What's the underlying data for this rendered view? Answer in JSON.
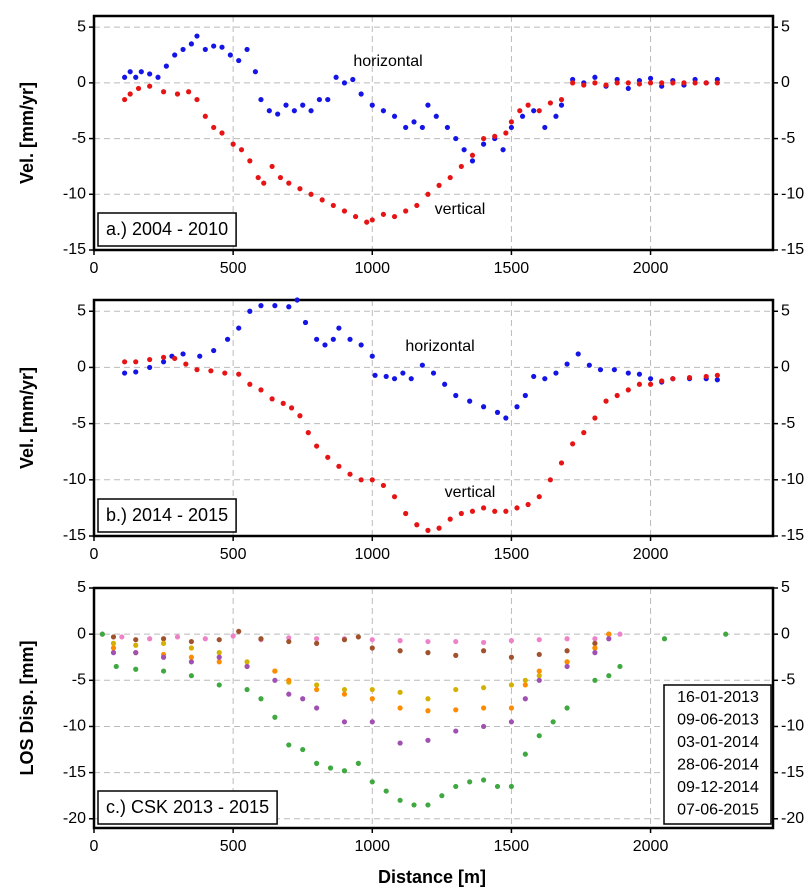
{
  "chart_data": [
    {
      "type": "scatter",
      "panel_label": "a.) 2004 - 2010",
      "ylabel": "Vel. [mm/yr]",
      "xlim": [
        0,
        2440
      ],
      "xticks": [
        0,
        500,
        1000,
        1500,
        2000
      ],
      "ylim": [
        -15,
        6
      ],
      "yticks": [
        -15,
        -10,
        -5,
        0,
        5
      ],
      "grid": true,
      "series": [
        {
          "name": "horizontal",
          "color": "#1414e6",
          "x": [
            110,
            130,
            150,
            170,
            200,
            230,
            260,
            290,
            320,
            350,
            370,
            400,
            430,
            460,
            490,
            520,
            550,
            580,
            600,
            630,
            660,
            690,
            720,
            750,
            780,
            810,
            840,
            870,
            900,
            930,
            960,
            1000,
            1040,
            1080,
            1120,
            1150,
            1180,
            1200,
            1230,
            1270,
            1300,
            1330,
            1360,
            1400,
            1440,
            1470,
            1500,
            1540,
            1580,
            1620,
            1660,
            1680,
            1720,
            1760,
            1800,
            1840,
            1880,
            1920,
            1960,
            2000,
            2040,
            2080,
            2120,
            2160,
            2200,
            2240
          ],
          "values": [
            0.5,
            1,
            0.5,
            1,
            0.8,
            0.5,
            1.5,
            2.5,
            3,
            3.5,
            4.2,
            3,
            3.3,
            3.2,
            2.5,
            2,
            3,
            1,
            -1.5,
            -2.5,
            -2.8,
            -2,
            -2.5,
            -2,
            -2.5,
            -1.5,
            -1.5,
            0.5,
            0,
            0.3,
            -1,
            -2,
            -2.5,
            -3,
            -4,
            -3.5,
            -4,
            -2,
            -3,
            -4,
            -5,
            -6,
            -7,
            -5.5,
            -5,
            -6,
            -4,
            -3,
            -2.5,
            -4,
            -3,
            -2,
            0.3,
            0,
            0.5,
            -0.3,
            0.3,
            -0.5,
            0.2,
            0.4,
            -0.3,
            0.2,
            -0.2,
            0.3,
            0,
            0.3
          ]
        },
        {
          "name": "vertical",
          "color": "#e61414",
          "x": [
            110,
            130,
            160,
            200,
            250,
            300,
            340,
            370,
            400,
            430,
            460,
            500,
            530,
            560,
            590,
            610,
            640,
            670,
            700,
            740,
            780,
            820,
            860,
            900,
            940,
            980,
            1000,
            1040,
            1080,
            1120,
            1160,
            1200,
            1240,
            1280,
            1320,
            1360,
            1400,
            1440,
            1480,
            1500,
            1530,
            1560,
            1600,
            1640,
            1680,
            1720,
            1760,
            1800,
            1840,
            1880,
            1920,
            1960,
            2000,
            2040,
            2080,
            2120,
            2160,
            2200,
            2240
          ],
          "values": [
            -1.5,
            -1,
            -0.5,
            -0.3,
            -0.8,
            -1,
            -0.8,
            -1.5,
            -3,
            -4,
            -4.5,
            -5.5,
            -6,
            -7,
            -8.5,
            -9,
            -7.5,
            -8.5,
            -9,
            -9.5,
            -10,
            -10.5,
            -11,
            -11.5,
            -12,
            -12.5,
            -12.3,
            -11.8,
            -12,
            -11.5,
            -11,
            -10,
            -9.2,
            -8.5,
            -7.5,
            -6.5,
            -5,
            -4.8,
            -4.5,
            -3.5,
            -2.5,
            -2,
            -2.5,
            -1.8,
            -1.5,
            0,
            -0.2,
            0,
            -0.2,
            0,
            0,
            -0.1,
            0,
            0,
            0,
            0,
            0,
            0,
            0
          ]
        }
      ]
    },
    {
      "type": "scatter",
      "panel_label": "b.) 2014 - 2015",
      "ylabel": "Vel. [mm/yr]",
      "xlim": [
        0,
        2440
      ],
      "xticks": [
        0,
        500,
        1000,
        1500,
        2000
      ],
      "ylim": [
        -15,
        6
      ],
      "yticks": [
        -15,
        -10,
        -5,
        0,
        5
      ],
      "grid": true,
      "series": [
        {
          "name": "horizontal",
          "color": "#1414e6",
          "x": [
            110,
            150,
            200,
            250,
            280,
            320,
            380,
            430,
            480,
            520,
            560,
            600,
            650,
            700,
            730,
            760,
            800,
            830,
            860,
            880,
            920,
            960,
            1000,
            1010,
            1050,
            1080,
            1110,
            1140,
            1180,
            1220,
            1260,
            1300,
            1350,
            1400,
            1450,
            1480,
            1520,
            1550,
            1580,
            1620,
            1660,
            1700,
            1740,
            1780,
            1820,
            1870,
            1920,
            1960,
            2000,
            2040,
            2080,
            2140,
            2200,
            2240
          ],
          "values": [
            -0.5,
            -0.4,
            0,
            0.5,
            1,
            1.2,
            1,
            1.5,
            2.5,
            3.5,
            5,
            5.5,
            5.5,
            5.4,
            6,
            4,
            2.5,
            2,
            2.5,
            3.5,
            2.5,
            2,
            1,
            -0.7,
            -0.8,
            -1,
            -0.5,
            -1,
            0.2,
            -0.5,
            -1.5,
            -2.5,
            -3,
            -3.5,
            -4,
            -4.5,
            -3.5,
            -2.5,
            -0.8,
            -1,
            -0.5,
            0.3,
            1.2,
            0.2,
            -0.2,
            -0.2,
            -0.5,
            -0.6,
            -1,
            -1.3,
            -1,
            -1,
            -1,
            -1.1
          ]
        },
        {
          "name": "vertical",
          "color": "#e61414",
          "x": [
            110,
            150,
            200,
            250,
            290,
            330,
            370,
            420,
            470,
            520,
            560,
            600,
            640,
            680,
            710,
            740,
            770,
            800,
            840,
            880,
            920,
            960,
            1000,
            1040,
            1080,
            1120,
            1160,
            1200,
            1240,
            1280,
            1320,
            1360,
            1400,
            1440,
            1480,
            1520,
            1560,
            1600,
            1640,
            1680,
            1720,
            1760,
            1800,
            1840,
            1880,
            1920,
            1960,
            2000,
            2040,
            2080,
            2140,
            2200,
            2240
          ],
          "values": [
            0.5,
            0.5,
            0.7,
            0.9,
            0.8,
            0.3,
            -0.2,
            -0.3,
            -0.5,
            -0.6,
            -1.5,
            -2,
            -2.8,
            -3.2,
            -3.6,
            -4.3,
            -5.8,
            -7,
            -8,
            -8.8,
            -9.5,
            -10,
            -10,
            -10.5,
            -11.5,
            -13,
            -14,
            -14.5,
            -14.3,
            -13.5,
            -13,
            -12.8,
            -12.5,
            -12.8,
            -12.8,
            -12.5,
            -12.2,
            -11.5,
            -10,
            -8.5,
            -6.8,
            -5.8,
            -4.5,
            -3,
            -2.5,
            -2,
            -1.5,
            -1.5,
            -1.2,
            -1,
            -0.9,
            -0.8,
            -0.7
          ]
        }
      ]
    },
    {
      "type": "scatter",
      "panel_label": "c.) CSK 2013 - 2015",
      "ylabel": "LOS Disp. [mm]",
      "xlabel": "Distance [m]",
      "xlim": [
        0,
        2440
      ],
      "xticks": [
        0,
        500,
        1000,
        1500,
        2000
      ],
      "ylim": [
        -21,
        5
      ],
      "yticks": [
        -20,
        -15,
        -10,
        -5,
        0,
        5
      ],
      "grid": true,
      "legend": "lower right",
      "series": [
        {
          "name": "16-01-2013",
          "color": "#ee82c8",
          "x": [
            30,
            100,
            200,
            300,
            400,
            500,
            600,
            700,
            800,
            900,
            1000,
            1100,
            1200,
            1300,
            1400,
            1500,
            1600,
            1700,
            1800,
            1850,
            1890
          ],
          "values": [
            0,
            -0.3,
            -0.5,
            -0.3,
            -0.5,
            -0.2,
            -0.6,
            -0.4,
            -0.5,
            -0.5,
            -0.6,
            -0.7,
            -0.8,
            -0.8,
            -0.9,
            -0.7,
            -0.6,
            -0.5,
            -0.5,
            0,
            0
          ]
        },
        {
          "name": "09-06-2013",
          "color": "#a0522d",
          "x": [
            70,
            150,
            250,
            350,
            450,
            520,
            600,
            700,
            800,
            900,
            950,
            1000,
            1100,
            1200,
            1300,
            1400,
            1500,
            1600,
            1700,
            1800,
            1850
          ],
          "values": [
            -0.3,
            -0.6,
            -0.5,
            -0.8,
            -0.6,
            0.3,
            -0.5,
            -0.8,
            -1,
            -0.6,
            -0.3,
            -1.5,
            -1.8,
            -2,
            -2.3,
            -1.8,
            -2.5,
            -2.2,
            -1.8,
            -1,
            0
          ]
        },
        {
          "name": "03-01-2014",
          "color": "#d4b000",
          "x": [
            70,
            150,
            250,
            350,
            450,
            550,
            650,
            700,
            800,
            900,
            1000,
            1100,
            1200,
            1300,
            1400,
            1500,
            1550,
            1600,
            1700,
            1800,
            1850
          ],
          "values": [
            -1,
            -1.2,
            -1,
            -1.5,
            -2,
            -3,
            -4,
            -5.2,
            -5.5,
            -6,
            -6,
            -6.3,
            -7,
            -6,
            -5.8,
            -5.5,
            -5,
            -4.5,
            -3,
            -1.5,
            0
          ]
        },
        {
          "name": "28-06-2014",
          "color": "#ff8c00",
          "x": [
            70,
            150,
            250,
            350,
            450,
            550,
            650,
            700,
            800,
            900,
            1000,
            1100,
            1200,
            1300,
            1400,
            1500,
            1550,
            1600,
            1700,
            1800,
            1850
          ],
          "values": [
            -1.5,
            -2,
            -2.2,
            -2.5,
            -3,
            -3.5,
            -4,
            -5,
            -6,
            -6.5,
            -7,
            -8,
            -8.3,
            -8.2,
            -8,
            -8,
            -5.5,
            -4,
            -3,
            -1.5,
            0
          ]
        },
        {
          "name": "09-12-2014",
          "color": "#a050b0",
          "x": [
            70,
            150,
            250,
            350,
            450,
            550,
            650,
            700,
            750,
            800,
            900,
            1000,
            1100,
            1200,
            1300,
            1400,
            1500,
            1550,
            1600,
            1700,
            1800,
            1850
          ],
          "values": [
            -2,
            -2,
            -2.5,
            -3,
            -2.5,
            -3.5,
            -5,
            -6.5,
            -7,
            -8,
            -9.5,
            -9.5,
            -11.8,
            -11.5,
            -10.5,
            -10,
            -9.5,
            -7,
            -5,
            -3.5,
            -2,
            -0.5
          ]
        },
        {
          "name": "07-06-2015",
          "color": "#40a840",
          "x": [
            30,
            80,
            150,
            250,
            350,
            450,
            550,
            600,
            650,
            700,
            750,
            800,
            850,
            900,
            950,
            1000,
            1050,
            1100,
            1150,
            1200,
            1250,
            1300,
            1350,
            1400,
            1450,
            1500,
            1550,
            1600,
            1650,
            1700,
            1800,
            1850,
            1890,
            2050,
            2270
          ],
          "values": [
            0,
            -3.5,
            -3.8,
            -4,
            -4.5,
            -5.5,
            -6,
            -7,
            -9,
            -12,
            -12.5,
            -14,
            -14.5,
            -14.8,
            -14,
            -16,
            -17,
            -18,
            -18.5,
            -18.5,
            -17.5,
            -16.5,
            -16,
            -15.8,
            -16.5,
            -16.5,
            -13,
            -11,
            -9.5,
            -8,
            -5,
            -4.5,
            -3.5,
            -0.5,
            0
          ]
        }
      ]
    }
  ]
}
